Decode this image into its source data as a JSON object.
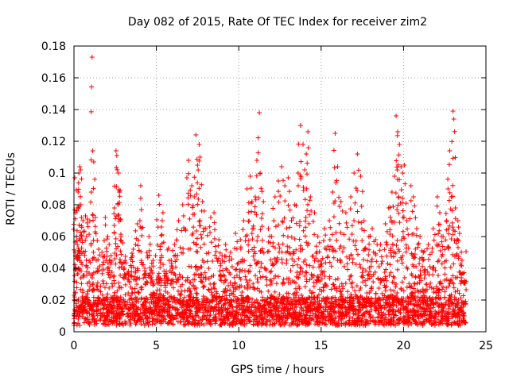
{
  "chart_data": {
    "type": "scatter",
    "title": "Day 082 of 2015, Rate Of TEC Index for receiver zim2",
    "xlabel": "GPS time / hours",
    "ylabel": "ROTI / TECUs",
    "xlim": [
      0,
      25
    ],
    "ylim": [
      0,
      0.18
    ],
    "xticks": [
      "0",
      "5",
      "10",
      "15",
      "20",
      "25"
    ],
    "yticks": [
      "0",
      "0.02",
      "0.04",
      "0.06",
      "0.08",
      "0.1",
      "0.12",
      "0.14",
      "0.16",
      "0.18"
    ],
    "grid": true,
    "marker": "plus",
    "marker_color": "#ff0000",
    "series": [
      {
        "points": [
          [
            0.05,
            0.097
          ],
          [
            0.1,
            0.075
          ],
          [
            0.15,
            0.06
          ],
          [
            0.2,
            0.055
          ],
          [
            0.25,
            0.088
          ],
          [
            0.3,
            0.1
          ],
          [
            0.35,
            0.104
          ],
          [
            0.4,
            0.102
          ],
          [
            0.45,
            0.072
          ],
          [
            0.55,
            0.07
          ],
          [
            0.7,
            0.073
          ],
          [
            0.8,
            0.071
          ],
          [
            1.05,
            0.088
          ],
          [
            1.1,
            0.173
          ],
          [
            1.2,
            0.107
          ],
          [
            1.3,
            0.072
          ],
          [
            1.5,
            0.052
          ],
          [
            1.7,
            0.05
          ],
          [
            1.9,
            0.072
          ],
          [
            2.05,
            0.06
          ],
          [
            2.25,
            0.048
          ],
          [
            2.45,
            0.078
          ],
          [
            2.55,
            0.114
          ],
          [
            2.6,
            0.111
          ],
          [
            2.7,
            0.1
          ],
          [
            2.75,
            0.088
          ],
          [
            2.8,
            0.089
          ],
          [
            2.85,
            0.06
          ],
          [
            3.1,
            0.045
          ],
          [
            3.3,
            0.038
          ],
          [
            3.6,
            0.052
          ],
          [
            3.85,
            0.068
          ],
          [
            4.0,
            0.07
          ],
          [
            4.05,
            0.092
          ],
          [
            4.3,
            0.04
          ],
          [
            4.55,
            0.06
          ],
          [
            4.8,
            0.045
          ],
          [
            5.1,
            0.035
          ],
          [
            5.15,
            0.086
          ],
          [
            5.3,
            0.066
          ],
          [
            5.4,
            0.075
          ],
          [
            5.6,
            0.038
          ],
          [
            5.9,
            0.045
          ],
          [
            6.1,
            0.055
          ],
          [
            6.35,
            0.07
          ],
          [
            6.6,
            0.08
          ],
          [
            6.85,
            0.097
          ],
          [
            6.95,
            0.108
          ],
          [
            7.15,
            0.092
          ],
          [
            7.3,
            0.085
          ],
          [
            7.4,
            0.124
          ],
          [
            7.5,
            0.105
          ],
          [
            7.6,
            0.118
          ],
          [
            7.65,
            0.11
          ],
          [
            7.8,
            0.082
          ],
          [
            8.0,
            0.065
          ],
          [
            8.3,
            0.072
          ],
          [
            8.5,
            0.075
          ],
          [
            8.8,
            0.058
          ],
          [
            9.0,
            0.045
          ],
          [
            9.2,
            0.055
          ],
          [
            9.5,
            0.05
          ],
          [
            9.8,
            0.062
          ],
          [
            10.1,
            0.058
          ],
          [
            10.3,
            0.07
          ],
          [
            10.5,
            0.09
          ],
          [
            10.7,
            0.098
          ],
          [
            10.8,
            0.082
          ],
          [
            11.0,
            0.085
          ],
          [
            11.1,
            0.108
          ],
          [
            11.25,
            0.138
          ],
          [
            11.3,
            0.1
          ],
          [
            11.5,
            0.082
          ],
          [
            11.8,
            0.065
          ],
          [
            12.0,
            0.06
          ],
          [
            12.2,
            0.085
          ],
          [
            12.4,
            0.095
          ],
          [
            12.6,
            0.104
          ],
          [
            12.8,
            0.092
          ],
          [
            13.0,
            0.097
          ],
          [
            13.2,
            0.07
          ],
          [
            13.4,
            0.08
          ],
          [
            13.6,
            0.1
          ],
          [
            13.75,
            0.13
          ],
          [
            13.9,
            0.118
          ],
          [
            14.0,
            0.102
          ],
          [
            14.1,
            0.112
          ],
          [
            14.2,
            0.126
          ],
          [
            14.35,
            0.085
          ],
          [
            14.6,
            0.075
          ],
          [
            14.8,
            0.06
          ],
          [
            15.0,
            0.045
          ],
          [
            15.2,
            0.065
          ],
          [
            15.5,
            0.07
          ],
          [
            15.7,
            0.088
          ],
          [
            15.85,
            0.125
          ],
          [
            16.0,
            0.104
          ],
          [
            16.2,
            0.082
          ],
          [
            16.5,
            0.075
          ],
          [
            16.8,
            0.085
          ],
          [
            17.0,
            0.1
          ],
          [
            17.2,
            0.112
          ],
          [
            17.4,
            0.098
          ],
          [
            17.6,
            0.07
          ],
          [
            17.9,
            0.06
          ],
          [
            18.1,
            0.065
          ],
          [
            18.3,
            0.058
          ],
          [
            18.6,
            0.055
          ],
          [
            18.9,
            0.068
          ],
          [
            19.1,
            0.078
          ],
          [
            19.3,
            0.088
          ],
          [
            19.45,
            0.098
          ],
          [
            19.55,
            0.136
          ],
          [
            19.65,
            0.126
          ],
          [
            19.75,
            0.118
          ],
          [
            19.85,
            0.104
          ],
          [
            19.95,
            0.1
          ],
          [
            20.05,
            0.105
          ],
          [
            20.2,
            0.07
          ],
          [
            20.45,
            0.092
          ],
          [
            20.6,
            0.085
          ],
          [
            20.8,
            0.065
          ],
          [
            21.0,
            0.06
          ],
          [
            21.2,
            0.05
          ],
          [
            21.5,
            0.055
          ],
          [
            21.8,
            0.065
          ],
          [
            22.05,
            0.085
          ],
          [
            22.2,
            0.075
          ],
          [
            22.4,
            0.06
          ],
          [
            22.6,
            0.07
          ],
          [
            22.7,
            0.09
          ],
          [
            22.8,
            0.114
          ],
          [
            22.9,
            0.085
          ],
          [
            23.0,
            0.139
          ],
          [
            23.05,
            0.134
          ],
          [
            23.15,
            0.078
          ],
          [
            23.3,
            0.07
          ],
          [
            23.4,
            0.062
          ],
          [
            23.55,
            0.045
          ],
          [
            23.7,
            0.032
          ]
        ]
      }
    ]
  }
}
